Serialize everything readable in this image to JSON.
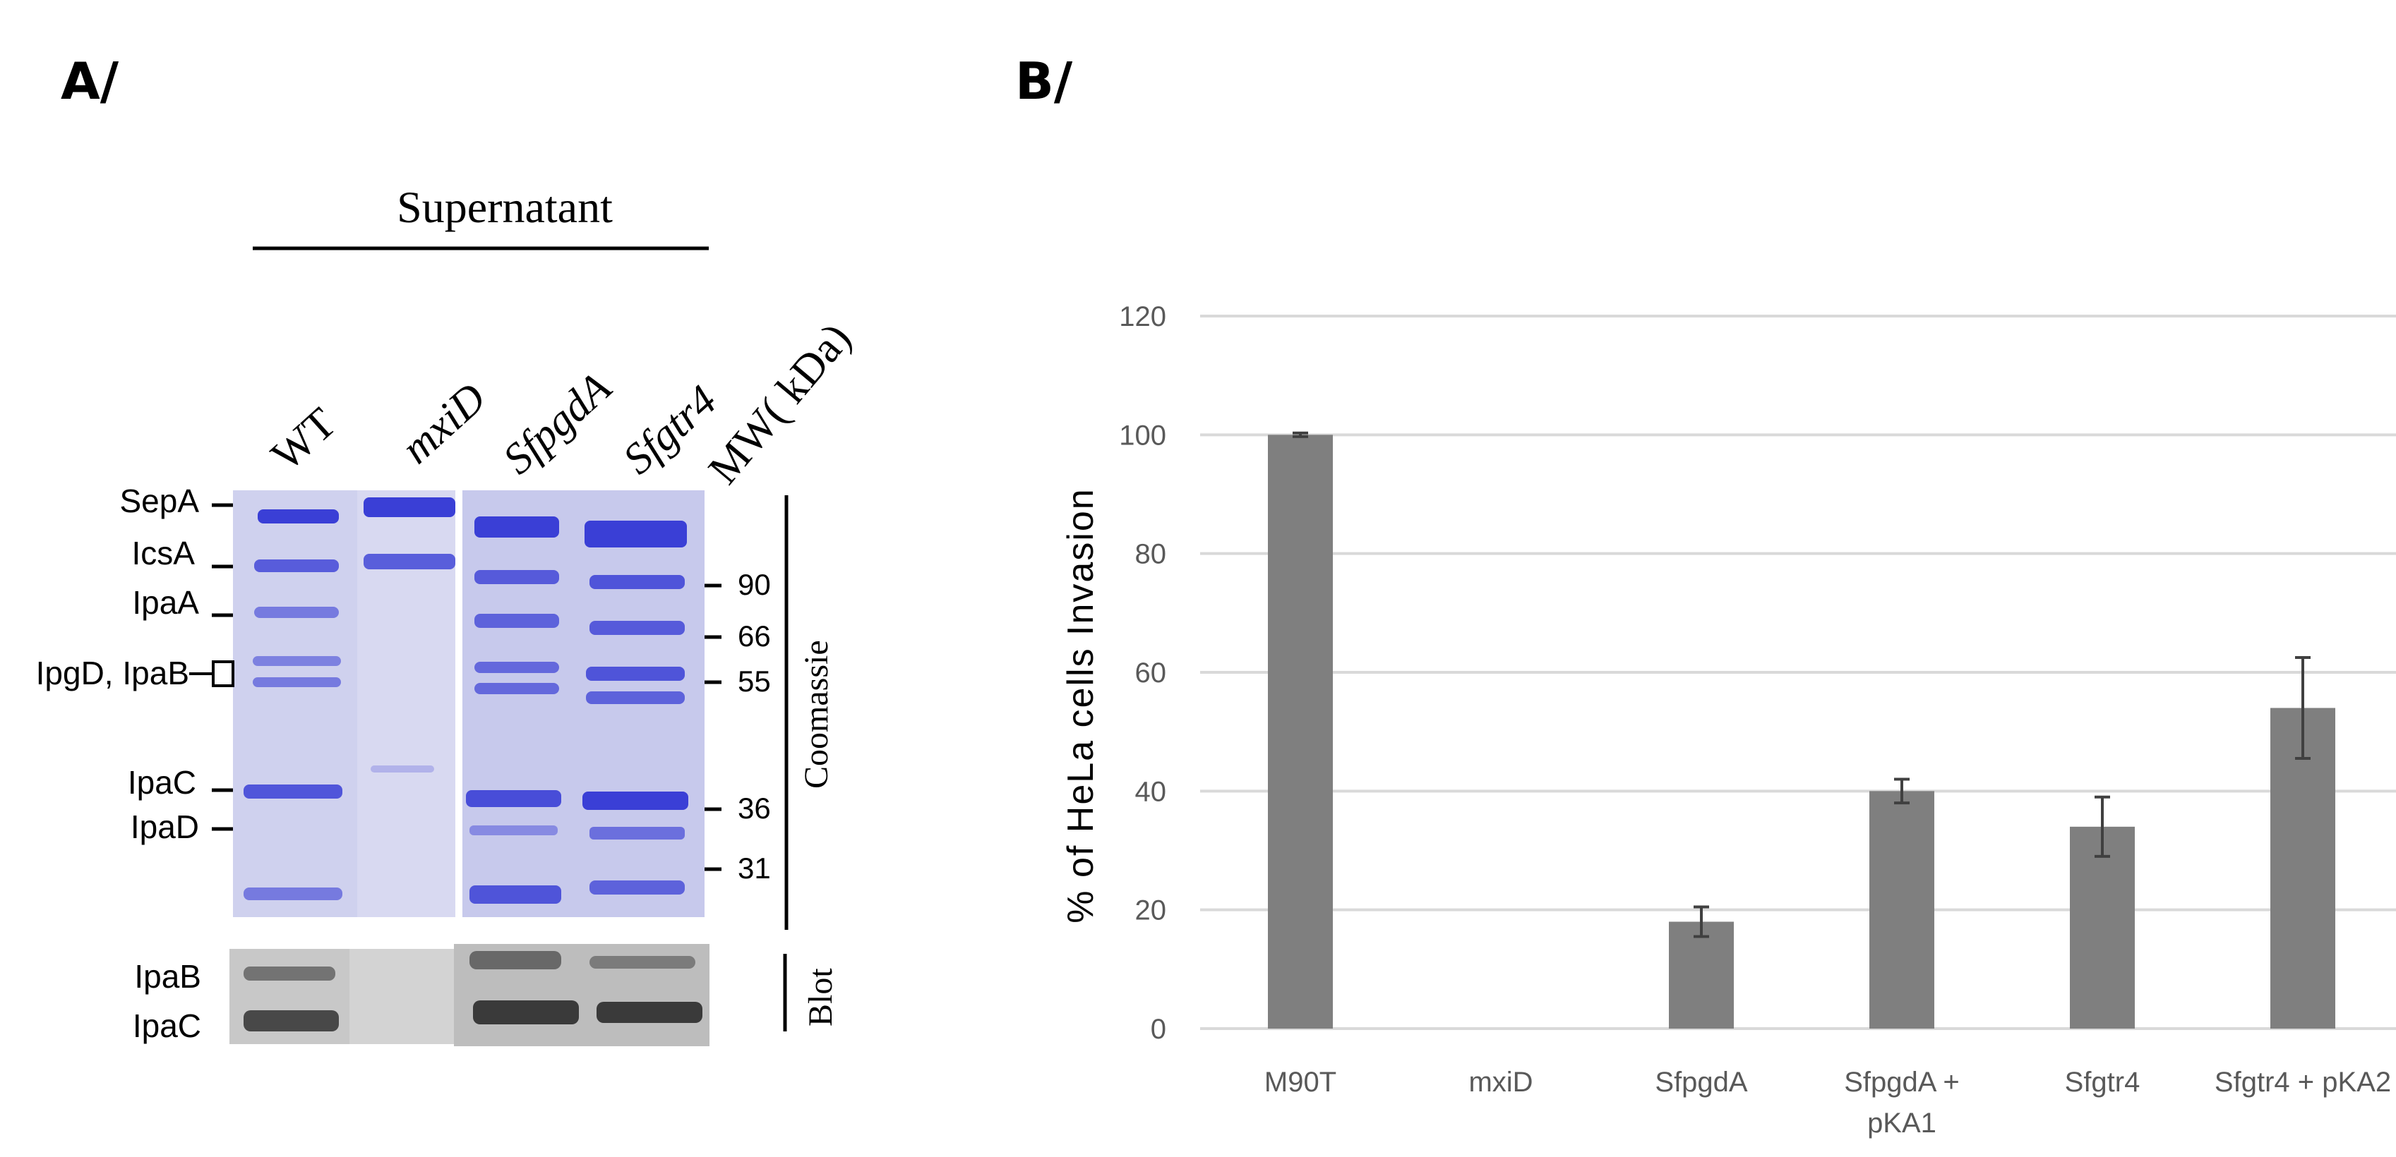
{
  "panel_a": {
    "label": "A/",
    "header": "Supernatant",
    "lanes": [
      {
        "label": "WT",
        "italic": false
      },
      {
        "label": "mxiD",
        "italic": true
      },
      {
        "label": "SfpgdA",
        "italic": true
      },
      {
        "label": "Sfgtr4",
        "italic": true
      },
      {
        "label": "MW( kDa)",
        "italic": false
      }
    ],
    "protein_labels": [
      "SepA",
      "IcsA",
      "IpaA",
      "IpgD, IpaB",
      "IpaC",
      "IpaD"
    ],
    "mw_markers": [
      "90",
      "66",
      "55",
      "36",
      "31"
    ],
    "section_coomassie": "Coomassie",
    "section_blot": "Blot",
    "blot_labels": [
      "IpaB",
      "IpaC"
    ],
    "colors": {
      "gel_bg": "#cfd1ee",
      "band": "#3a3fd6",
      "blot_bg": "#c9c9c9",
      "blot_band": "#3a3a3a"
    }
  },
  "panel_b": {
    "label": "B/",
    "colors": {
      "bar": "#7f7f7f",
      "grid": "#d9d9d9",
      "error": "#404040",
      "tick": "#595959"
    }
  },
  "chart_data": {
    "type": "bar",
    "title": "",
    "xlabel": "",
    "ylabel": "% of HeLa cells Invasion",
    "categories": [
      [
        "M90T"
      ],
      [
        "mxiD"
      ],
      [
        "SfpgdA"
      ],
      [
        "SfpgdA +",
        "pKA1"
      ],
      [
        "Sfgtr4"
      ],
      [
        "Sfgtr4 + pKA2"
      ]
    ],
    "values": [
      100,
      0,
      18,
      40,
      34,
      54
    ],
    "errors": [
      0.3,
      0,
      2.5,
      2,
      5,
      8.5
    ],
    "ylim": [
      0,
      120
    ],
    "yticks": [
      0,
      20,
      40,
      60,
      80,
      100,
      120
    ],
    "grid": true
  }
}
